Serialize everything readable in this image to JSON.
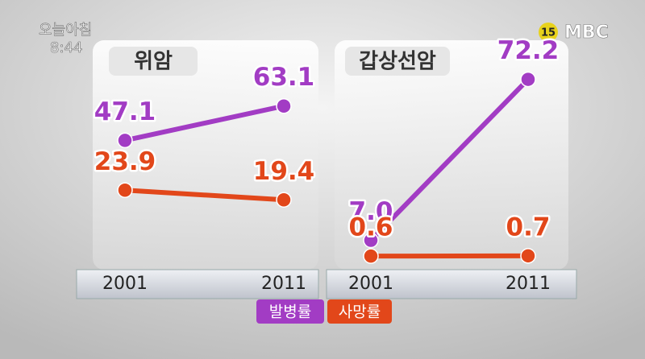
{
  "overlay": {
    "program": "오늘아침",
    "time": "8:44",
    "rating": "15",
    "channel": "MBC"
  },
  "chart_data": [
    {
      "type": "line",
      "title": "위암",
      "categories": [
        "2001",
        "2011"
      ],
      "ylim": [
        0,
        75
      ],
      "series": [
        {
          "name": "발병률",
          "color": "#a23cc4",
          "values": [
            47.1,
            63.1
          ]
        },
        {
          "name": "사망률",
          "color": "#e2471a",
          "values": [
            23.9,
            19.4
          ]
        }
      ]
    },
    {
      "type": "line",
      "title": "갑상선암",
      "categories": [
        "2001",
        "2011"
      ],
      "ylim": [
        0,
        75
      ],
      "series": [
        {
          "name": "발병률",
          "color": "#a23cc4",
          "values": [
            7.0,
            72.2
          ],
          "value_labels": [
            "7.0",
            "72.2"
          ]
        },
        {
          "name": "사망률",
          "color": "#e2471a",
          "values": [
            0.6,
            0.7
          ]
        }
      ]
    }
  ]
}
